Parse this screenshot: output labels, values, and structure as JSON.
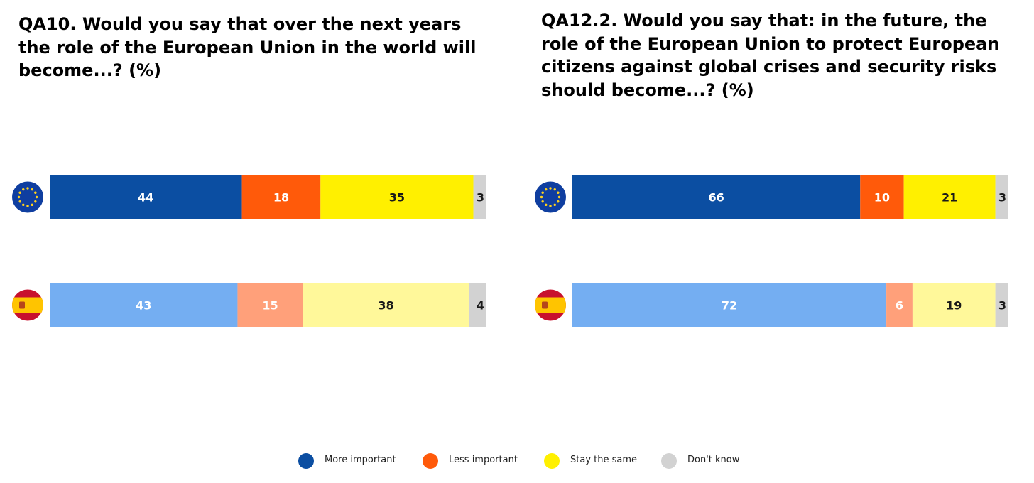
{
  "colors": {
    "eu": {
      "more_important": "#0B4EA2",
      "less_important": "#FF5A0A",
      "stay_the_same": "#FFF000",
      "dont_know": "#D2D2D2"
    },
    "es": {
      "more_important": "#74AEF2",
      "less_important": "#FFA07A",
      "stay_the_same": "#FFF89A",
      "dont_know": "#D2D2D2"
    }
  },
  "legend": [
    {
      "key": "more_important",
      "label": "More important",
      "color": "#0B4EA2"
    },
    {
      "key": "less_important",
      "label": "Less important",
      "color": "#FF5A0A"
    },
    {
      "key": "stay_the_same",
      "label": "Stay the same",
      "color": "#FFF000"
    },
    {
      "key": "dont_know",
      "label": "Don't know",
      "color": "#D2D2D2"
    }
  ],
  "chart_data": [
    {
      "type": "bar",
      "stacked": true,
      "orientation": "horizontal",
      "title": "QA10. Would you say that over the next years the role of the European Union in the world will become...? (%)",
      "categories": [
        "EU",
        "Spain"
      ],
      "category_icons": [
        "eu-flag-icon",
        "spain-flag-icon"
      ],
      "series": [
        {
          "name": "More important",
          "values": [
            44,
            43
          ]
        },
        {
          "name": "Less important",
          "values": [
            18,
            15
          ]
        },
        {
          "name": "Stay the same",
          "values": [
            35,
            38
          ]
        },
        {
          "name": "Don't know",
          "values": [
            3,
            4
          ]
        }
      ],
      "xlim": [
        0,
        100
      ]
    },
    {
      "type": "bar",
      "stacked": true,
      "orientation": "horizontal",
      "title": "QA12.2. Would you say that: in the future, the role of the European Union to protect European citizens against global crises and security risks should become...? (%)",
      "categories": [
        "EU",
        "Spain"
      ],
      "category_icons": [
        "eu-flag-icon",
        "spain-flag-icon"
      ],
      "series": [
        {
          "name": "More important",
          "values": [
            66,
            72
          ]
        },
        {
          "name": "Less important",
          "values": [
            10,
            6
          ]
        },
        {
          "name": "Stay the same",
          "values": [
            21,
            19
          ]
        },
        {
          "name": "Don't know",
          "values": [
            3,
            3
          ]
        }
      ],
      "xlim": [
        0,
        100
      ]
    }
  ]
}
